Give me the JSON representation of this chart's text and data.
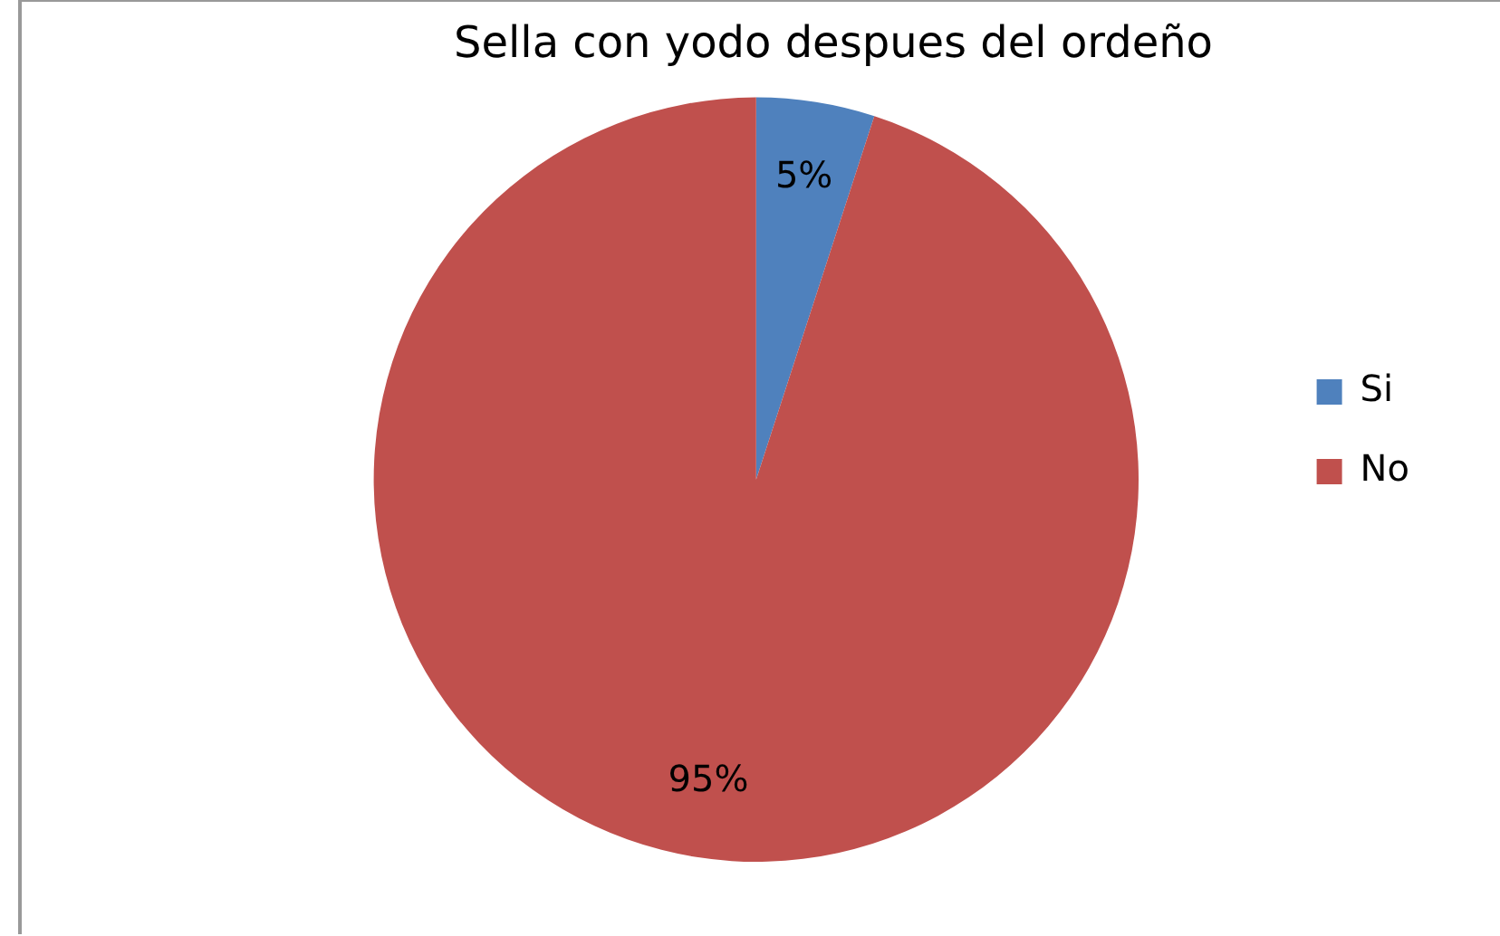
{
  "chart_data": {
    "type": "pie",
    "title": "Sella con yodo despues del ordeño",
    "categories": [
      "Si",
      "No"
    ],
    "values": [
      5,
      95
    ],
    "colors": [
      "#4f81bd",
      "#c0504d"
    ],
    "value_labels": [
      "5%",
      "95%"
    ],
    "legend": "right"
  }
}
